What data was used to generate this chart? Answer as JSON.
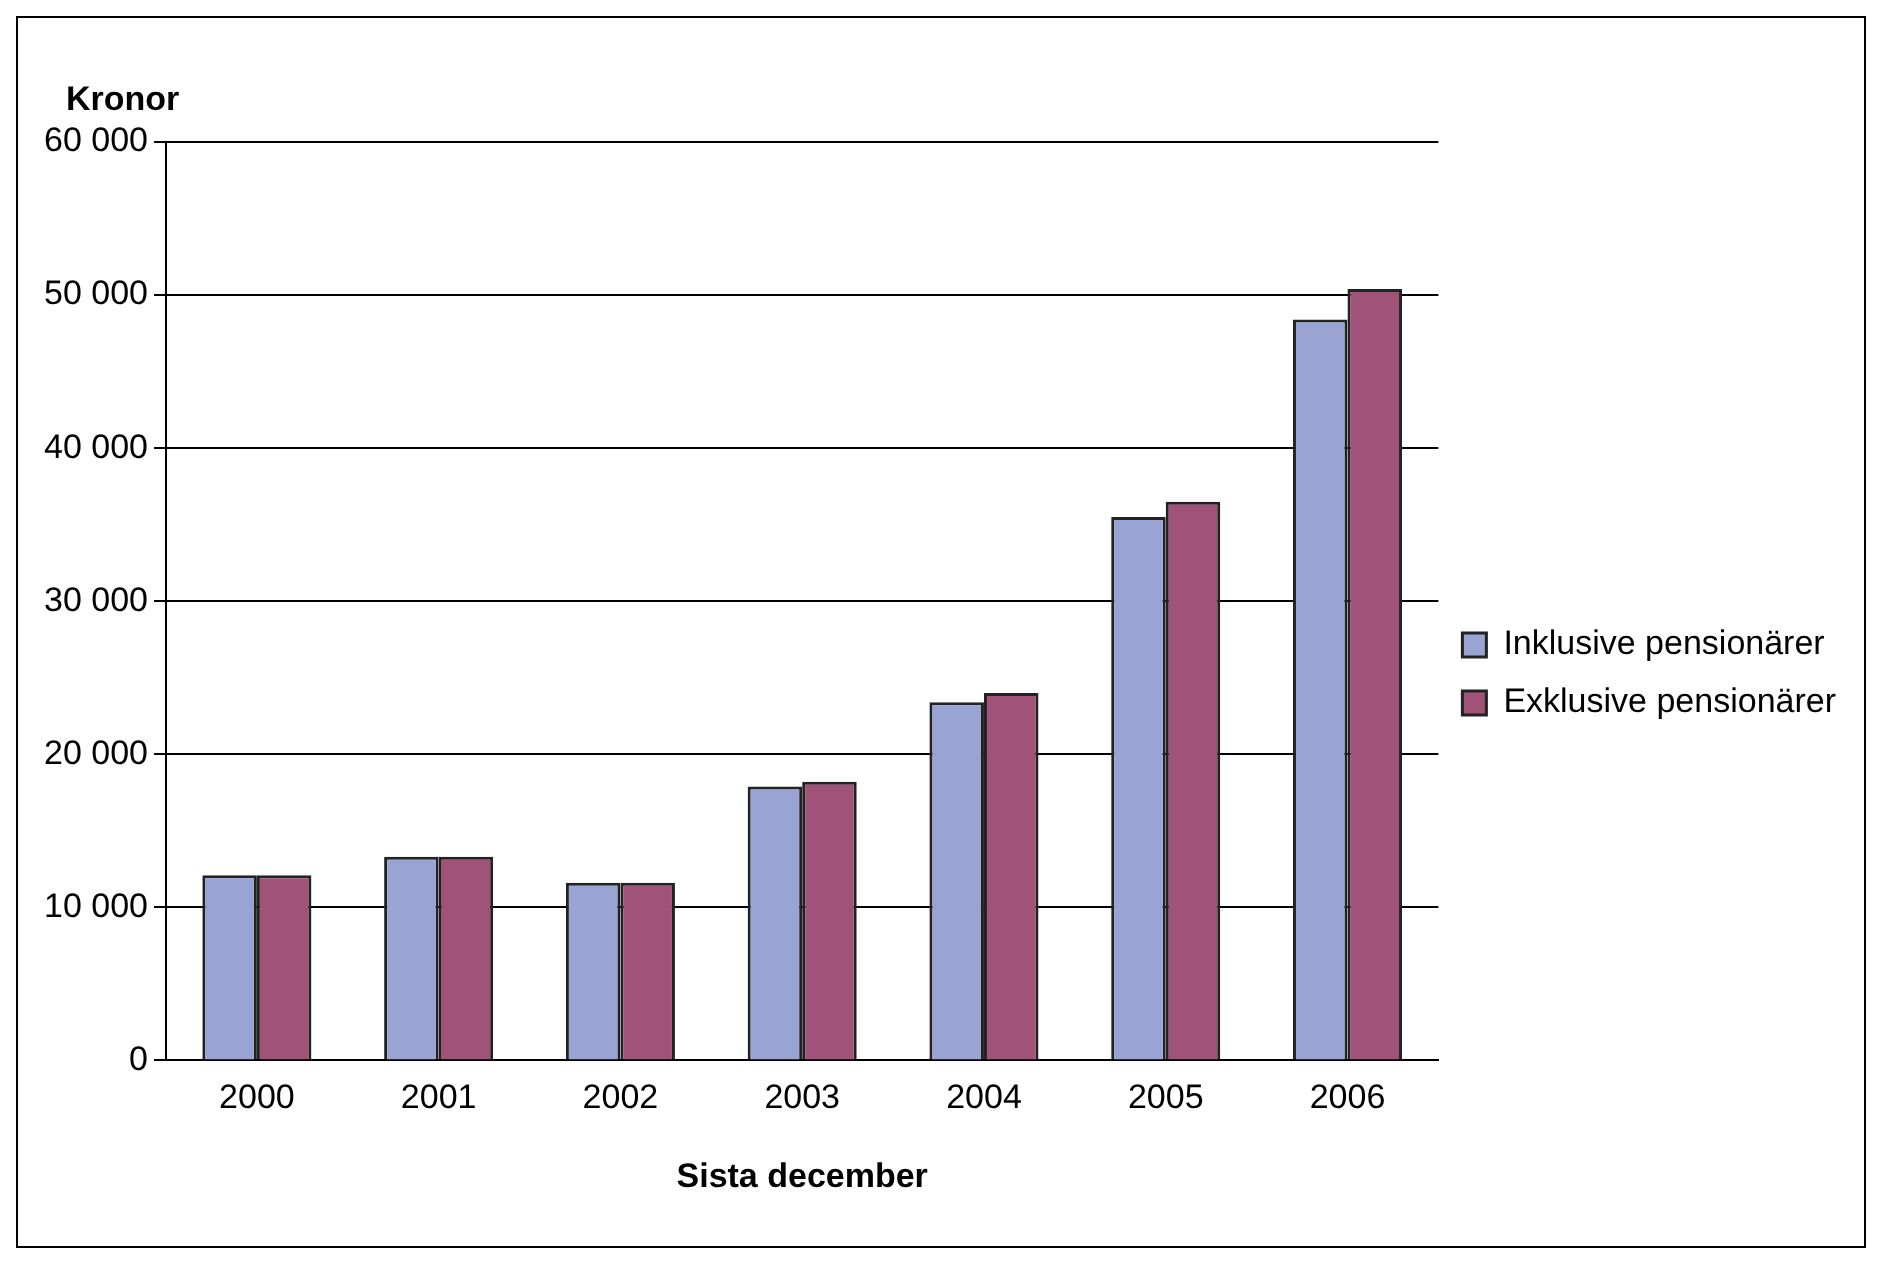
{
  "chart_data": {
    "type": "bar",
    "xlabel": "Sista december",
    "ylabel": "Kronor",
    "categories": [
      "2000",
      "2001",
      "2002",
      "2003",
      "2004",
      "2005",
      "2006"
    ],
    "series": [
      {
        "name": "Inklusive pensionärer",
        "color": "#9aa4d4",
        "values": [
          12100,
          13300,
          11600,
          17900,
          23400,
          35500,
          48400
        ]
      },
      {
        "name": "Exklusive pensionärer",
        "color": "#a05278",
        "values": [
          12100,
          13300,
          11600,
          18200,
          24000,
          36500,
          50400
        ]
      }
    ],
    "ylim": [
      0,
      60000
    ],
    "yticks": [
      {
        "value": 0,
        "label": "0"
      },
      {
        "value": 10000,
        "label": "10 000"
      },
      {
        "value": 20000,
        "label": "20 000"
      },
      {
        "value": 30000,
        "label": "30 000"
      },
      {
        "value": 40000,
        "label": "40 000"
      },
      {
        "value": 50000,
        "label": "50 000"
      },
      {
        "value": 60000,
        "label": "60 000"
      }
    ],
    "grid": "y",
    "legend": "right"
  }
}
